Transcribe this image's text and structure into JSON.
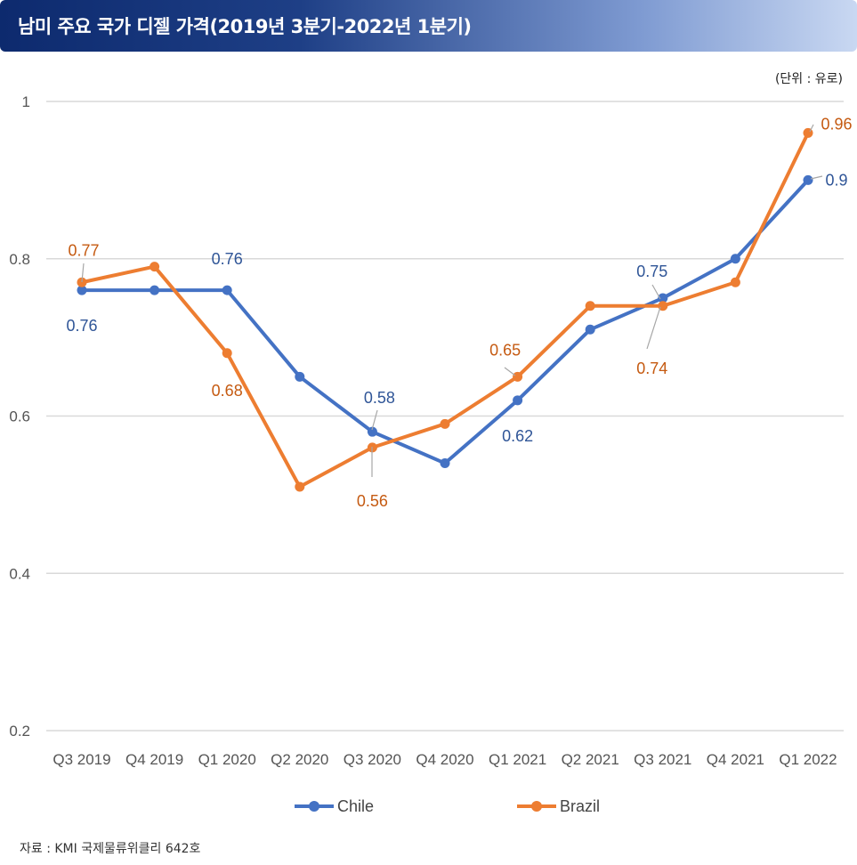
{
  "title": "남미 주요 국가 디젤 가격(2019년 3분기-2022년 1분기)",
  "unit": "(단위 : 유로)",
  "source": "자료 : KMI 국제물류위클리 642호",
  "chart_data": {
    "type": "line",
    "categories": [
      "Q3 2019",
      "Q4 2019",
      "Q1 2020",
      "Q2 2020",
      "Q3 2020",
      "Q4 2020",
      "Q1 2021",
      "Q2 2021",
      "Q3 2021",
      "Q4 2021",
      "Q1 2022"
    ],
    "series": [
      {
        "name": "Chile",
        "color": "#4472c4",
        "label_color": "#2f5597",
        "values": [
          0.76,
          0.76,
          0.76,
          0.65,
          0.58,
          0.54,
          0.62,
          0.71,
          0.75,
          0.8,
          0.9
        ],
        "labels": [
          "0.76",
          "",
          "0.76",
          "",
          "0.58",
          "",
          "0.62",
          "",
          "0.75",
          "",
          "0.9"
        ]
      },
      {
        "name": "Brazil",
        "color": "#ed7d31",
        "label_color": "#c55a11",
        "values": [
          0.77,
          0.79,
          0.68,
          0.51,
          0.56,
          0.59,
          0.65,
          0.74,
          0.74,
          0.77,
          0.96
        ],
        "labels": [
          "0.77",
          "",
          "0.68",
          "",
          "0.56",
          "",
          "0.65",
          "",
          "0.74",
          "",
          "0.96"
        ]
      }
    ],
    "yticks": [
      "1",
      "0.8",
      "0.6",
      "0.4",
      "0.2"
    ],
    "ylim": [
      0.2,
      1.0
    ],
    "grid": true,
    "legend": "bottom"
  }
}
